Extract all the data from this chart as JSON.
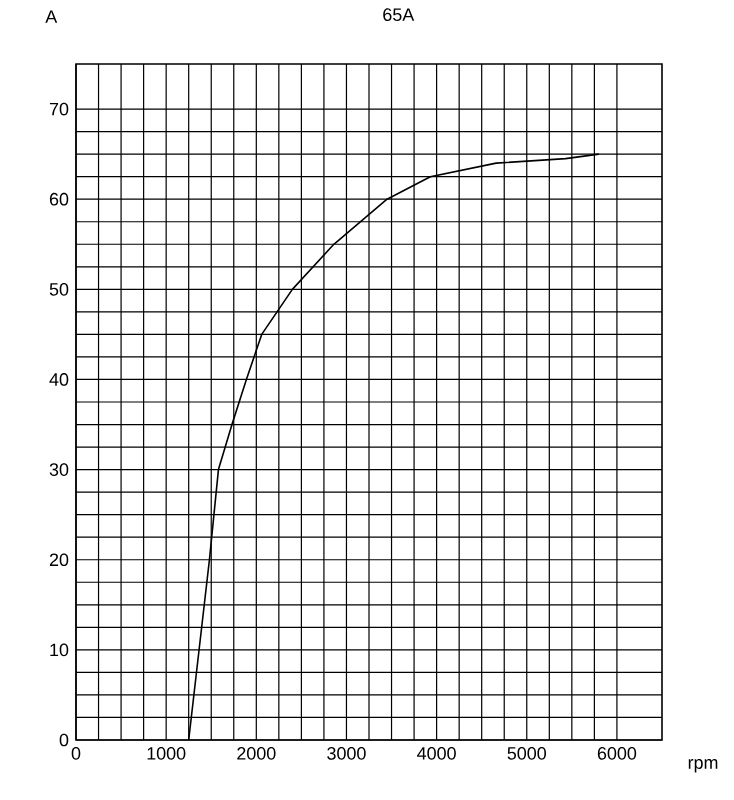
{
  "chart_data": {
    "type": "line",
    "title": "65A",
    "xlabel": "rpm",
    "ylabel": "A",
    "xlim": [
      0,
      6500
    ],
    "ylim": [
      0,
      75
    ],
    "xticks": [
      0,
      1000,
      2000,
      3000,
      4000,
      5000,
      6000
    ],
    "yticks": [
      0,
      10,
      20,
      30,
      40,
      50,
      60,
      70
    ],
    "grid": true,
    "color": "#000000",
    "x": [
      1250,
      1480,
      1580,
      1730,
      1890,
      2060,
      2400,
      2860,
      3450,
      3930,
      4660,
      5430,
      5800
    ],
    "values": [
      0,
      20,
      30,
      35,
      40,
      45,
      50,
      55,
      60,
      62.5,
      64,
      64.5,
      65
    ]
  }
}
